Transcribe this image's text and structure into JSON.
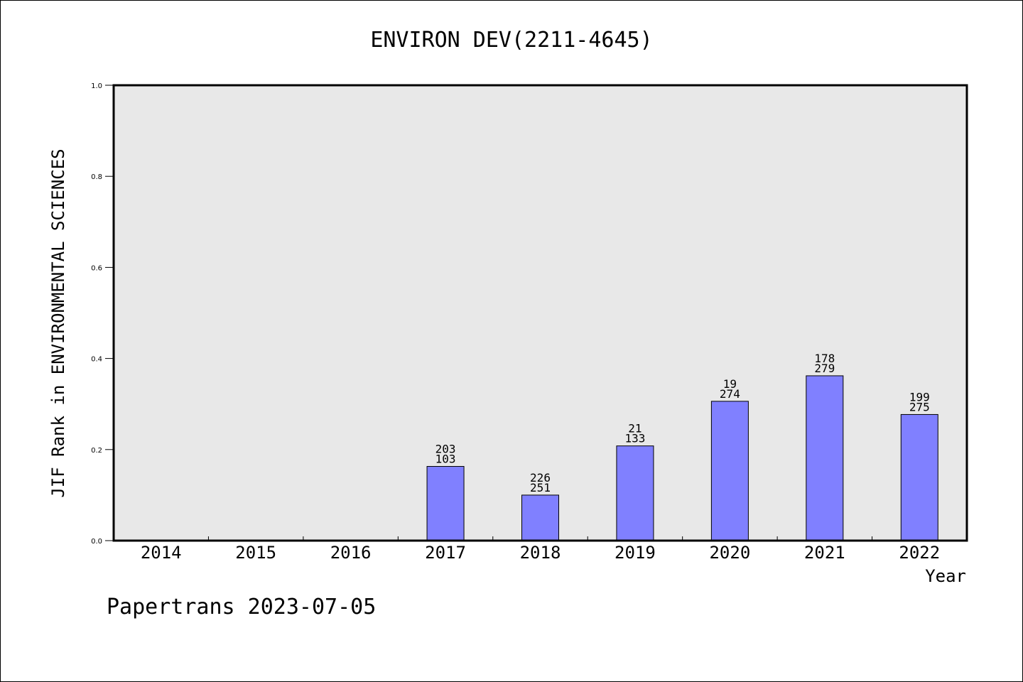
{
  "footer": "Papertrans 2023-07-05",
  "chart_data": {
    "type": "bar",
    "title": "ENVIRON DEV(2211-4645)",
    "xlabel": "Year",
    "ylabel": "JIF Rank in ENVIRONMENTAL SCIENCES",
    "ylim": [
      0,
      1.0
    ],
    "yticks": [
      "0.0",
      "0.2",
      "0.4",
      "0.6",
      "0.8",
      "1.0"
    ],
    "categories": [
      "2014",
      "2015",
      "2016",
      "2017",
      "2018",
      "2019",
      "2020",
      "2021",
      "2022"
    ],
    "values": [
      null,
      null,
      null,
      0.163,
      0.1,
      0.208,
      0.306,
      0.362,
      0.277
    ],
    "rank_labels": [
      "",
      "",
      "",
      "203",
      "226",
      "21",
      "19",
      "178",
      "199"
    ],
    "total_labels": [
      "",
      "",
      "",
      "103",
      "251",
      "133",
      "274",
      "279",
      "275"
    ],
    "colors": {
      "bar": "#8080ff",
      "plot_bg": "#e8e8e8",
      "axis": "#000000"
    },
    "grid": false,
    "legend": "none"
  }
}
